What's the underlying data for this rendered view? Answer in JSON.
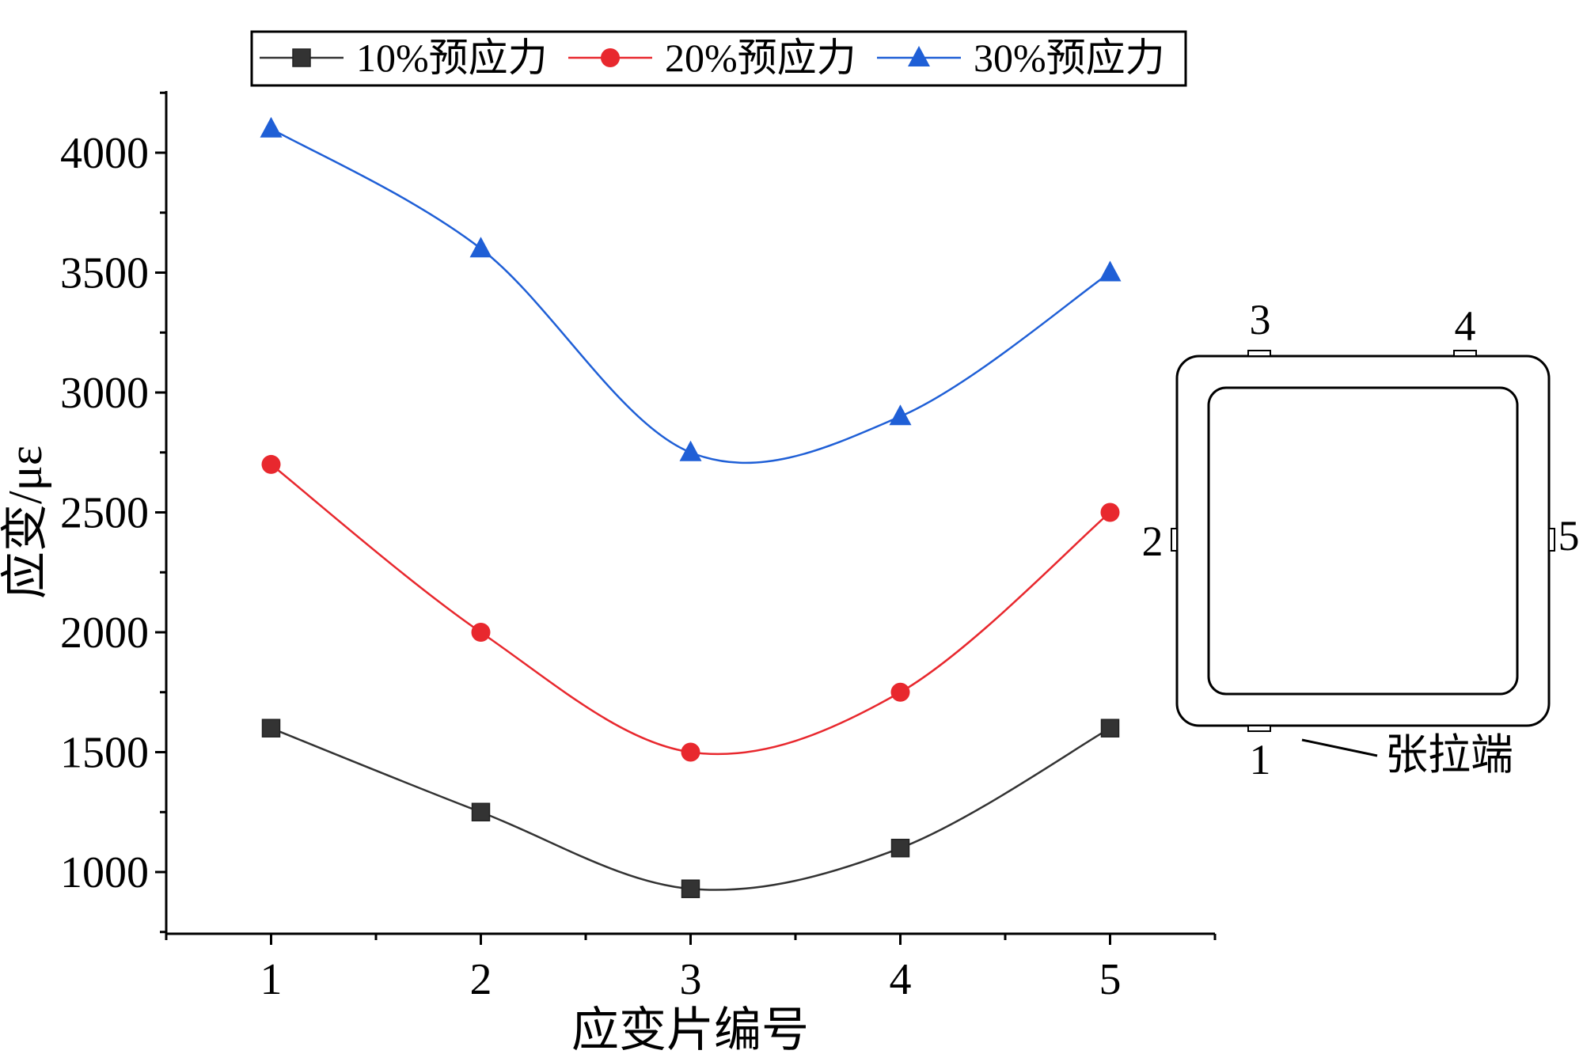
{
  "chart_data": {
    "type": "line",
    "xlabel": "应变片编号",
    "ylabel": "应变/με",
    "categories": [
      "1",
      "2",
      "3",
      "4",
      "5"
    ],
    "yticks": [
      "1000",
      "1500",
      "2000",
      "2500",
      "3000",
      "3500",
      "4000"
    ],
    "ylim": [
      750,
      4250
    ],
    "series": [
      {
        "name": "10%预应力",
        "color": "#333333",
        "marker": "square",
        "values": [
          1600,
          1250,
          930,
          1100,
          1600
        ]
      },
      {
        "name": "20%预应力",
        "color": "#e8282e",
        "marker": "circle",
        "values": [
          2700,
          2000,
          1500,
          1750,
          2500
        ]
      },
      {
        "name": "30%预应力",
        "color": "#1f5fd6",
        "marker": "triangle",
        "values": [
          4100,
          3600,
          2750,
          2900,
          3500
        ]
      }
    ],
    "legend_position": "top",
    "grid": false
  },
  "inset": {
    "labels": [
      "1",
      "2",
      "3",
      "4",
      "5"
    ],
    "annotation": "张拉端"
  }
}
